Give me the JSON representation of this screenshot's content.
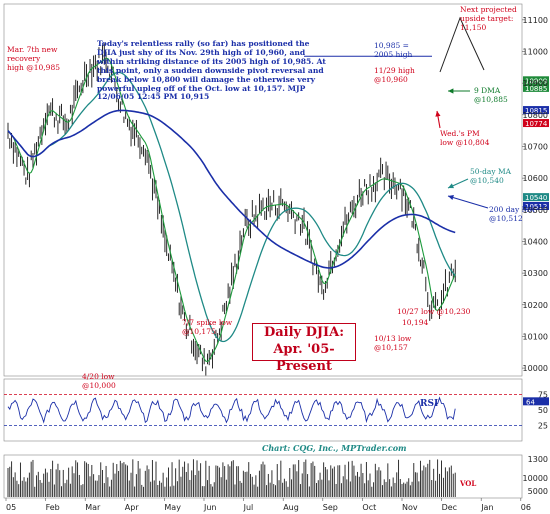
{
  "chart_data": {
    "type": "line",
    "title": "Daily DJIA:",
    "subtitle": "Apr. '05-Present",
    "commentary": "Today's relentless rally (so far) has positioned the DJIA just shy of its Nov. 29th high of 10,960, and within striking distance of its 2005 high of 10,985. At this point, only a sudden downside pivot reversal and break below 10,800 will damage the otherwise very powerful upleg off of the Oct. low at 10,157.  MJP  12/06/05  12:45 PM  10,915",
    "credit": "Chart: CQG, Inc., MPTrader.com",
    "x_ticks": [
      "05",
      "Feb",
      "Mar",
      "Apr",
      "May",
      "Jun",
      "Jul",
      "Aug",
      "Sep",
      "Oct",
      "Nov",
      "Dec",
      "Jan",
      "06"
    ],
    "y_ticks": [
      "11100",
      "11000",
      "10900",
      "10800",
      "10700",
      "10600",
      "10500",
      "10400",
      "10300",
      "10200",
      "10100",
      "10000"
    ],
    "ylim": [
      9975,
      11150
    ],
    "rsi_ticks": [
      "75",
      "50",
      "25"
    ],
    "rsi_label": "RSI",
    "rsi_current": "64",
    "vol_ticks": [
      "1300",
      "10000",
      "5000"
    ],
    "vol_label": "VOL",
    "price_tags": [
      {
        "text": "10909",
        "value": 10909,
        "color": "#1f8a3a"
      },
      {
        "text": "10885",
        "value": 10885,
        "color": "#1f8a3a"
      },
      {
        "text": "10815",
        "value": 10815,
        "color": "#1b2fa8"
      },
      {
        "text": "10774",
        "value": 10774,
        "color": "#d0021b"
      },
      {
        "text": "10540",
        "value": 10540,
        "color": "#1f8a86"
      },
      {
        "text": "10512",
        "value": 10512,
        "color": "#1b2fa8"
      }
    ],
    "annotations": [
      {
        "id": "mar7",
        "text": "Mar. 7th new\nrecovery\nhigh @10,985",
        "color": "red"
      },
      {
        "id": "apr20",
        "text": "4/20 low\n@10,000",
        "color": "red"
      },
      {
        "id": "jul7",
        "text": "7/7 spike low\n@10,175",
        "color": "red"
      },
      {
        "id": "oct27",
        "text": "10/27 low @10,230",
        "color": "red"
      },
      {
        "id": "l10194",
        "text": "10,194",
        "color": "red"
      },
      {
        "id": "oct13",
        "text": "10/13 low\n@10,157",
        "color": "red"
      },
      {
        "id": "high2005",
        "text": "10,985 =\n2005 high",
        "color": "blue"
      },
      {
        "id": "nov29",
        "text": "11/29 high\n@10,960",
        "color": "red"
      },
      {
        "id": "proj",
        "text": "Next projected\nupside target:\n11,150",
        "color": "red"
      },
      {
        "id": "dma9",
        "text": "9 DMA\n@10,885",
        "color": "green"
      },
      {
        "id": "wedlow",
        "text": "Wed.'s PM\nlow @10,804",
        "color": "red"
      },
      {
        "id": "ma50",
        "text": "50-day MA\n@10,540",
        "color": "teal"
      },
      {
        "id": "ma200",
        "text": "200 day MA\n@10,512",
        "color": "blue"
      }
    ],
    "series": [
      {
        "name": "DJIA",
        "color": "#000000",
        "x": [
          0,
          0.5,
          1,
          1.5,
          2,
          2.5,
          3,
          3.5,
          4,
          4.5,
          5,
          5.3,
          5.7,
          6,
          6.5,
          7,
          7.5,
          8,
          8.5,
          9,
          9.5,
          10,
          10.3,
          10.6,
          10.8,
          11,
          11.2,
          11.4
        ],
        "values": [
          10750,
          10600,
          10820,
          10770,
          10940,
          10985,
          10790,
          10700,
          10400,
          10150,
          10010,
          10080,
          10270,
          10440,
          10510,
          10520,
          10460,
          10250,
          10430,
          10560,
          10600,
          10580,
          10480,
          10320,
          10170,
          10200,
          10260,
          10320
        ]
      },
      {
        "name": "9 DMA",
        "color": "#1d9a3c",
        "role": "ma9"
      },
      {
        "name": "50-day MA",
        "color": "#1f8a86",
        "role": "ma50"
      },
      {
        "name": "200 day MA",
        "color": "#1b2fa8",
        "role": "ma200"
      }
    ]
  }
}
